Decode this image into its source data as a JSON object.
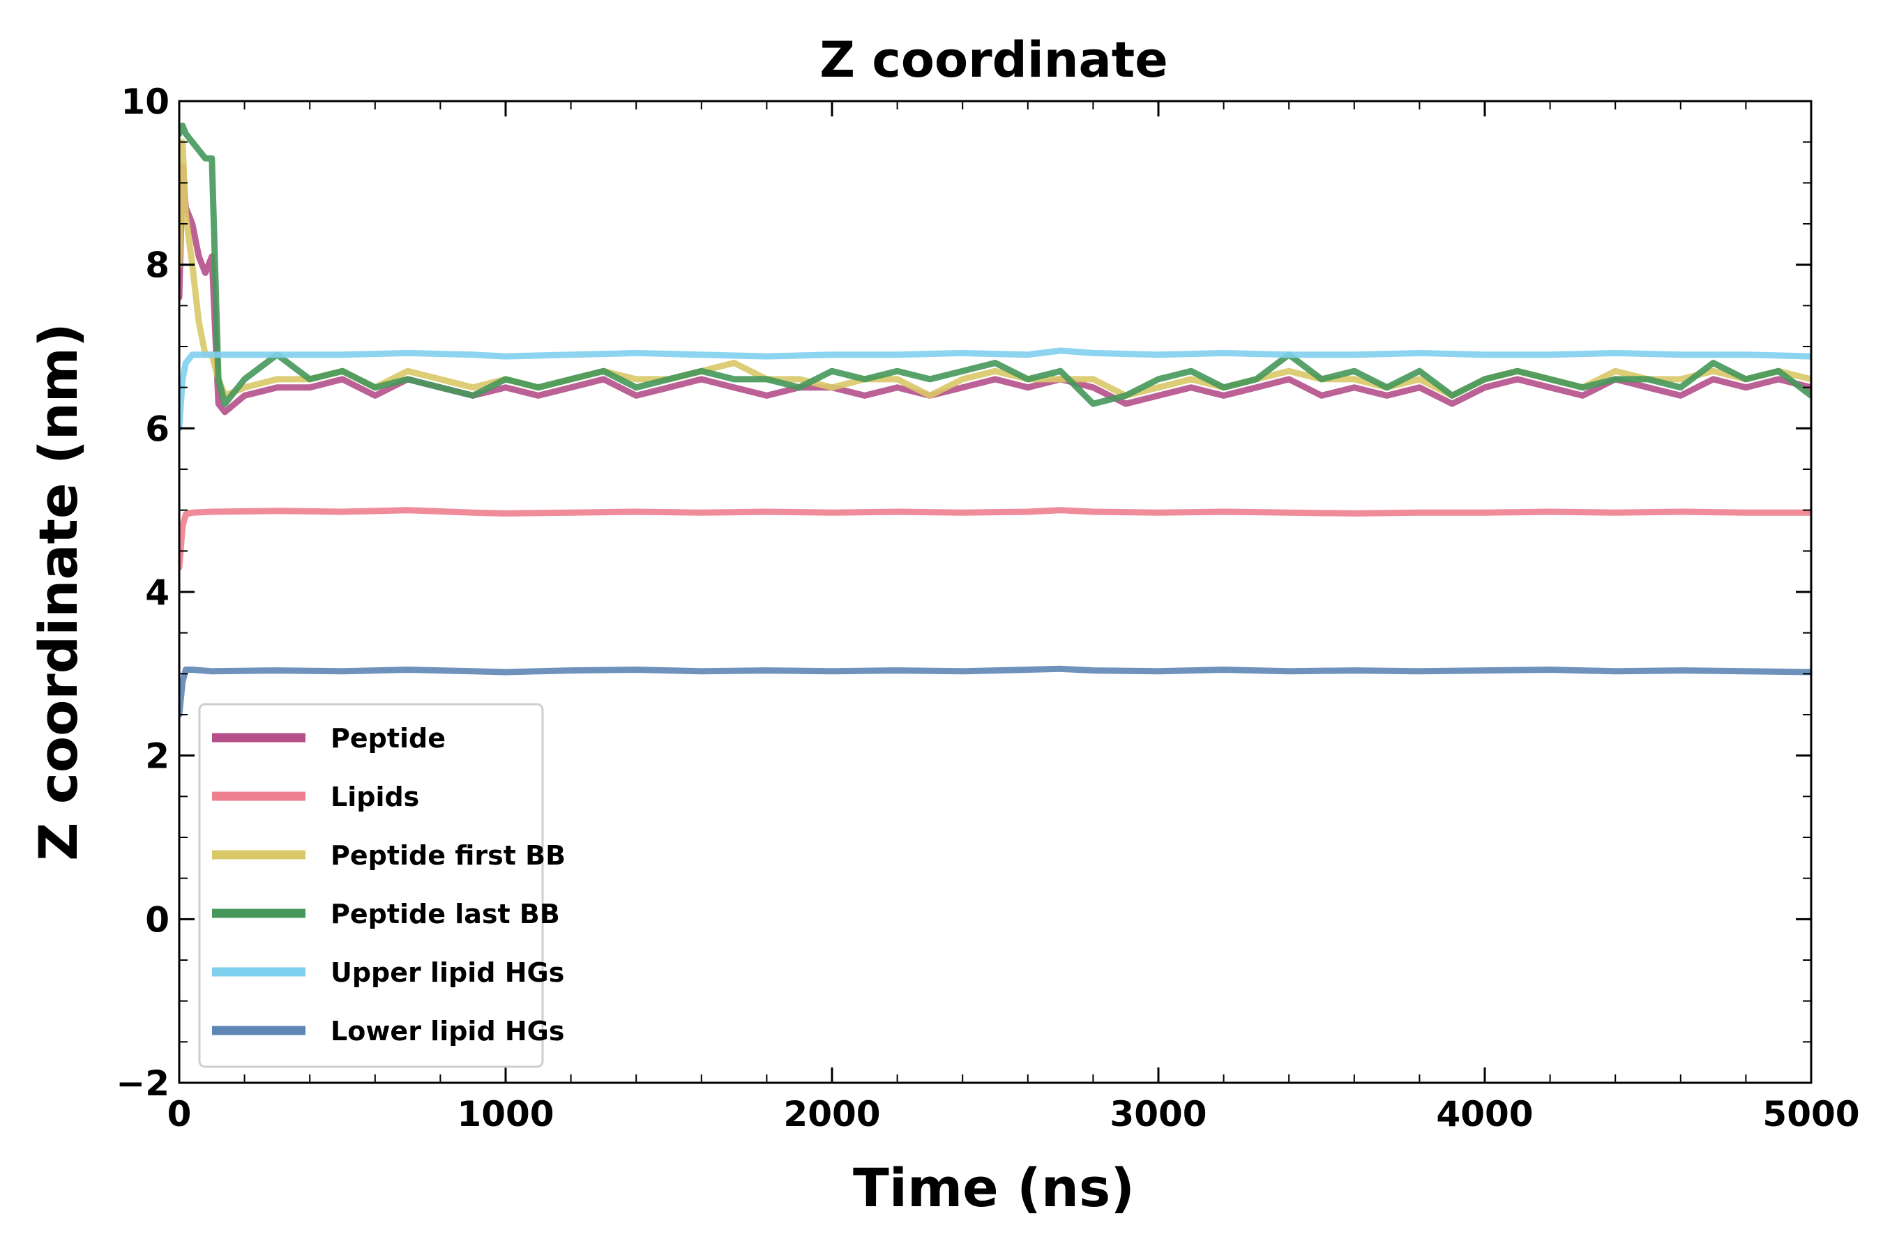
{
  "chart_data": {
    "type": "line",
    "title": "Z coordinate",
    "xlabel": "Time (ns)",
    "ylabel": "Z coordinate (nm)",
    "xlim": [
      0,
      5000
    ],
    "ylim": [
      -2,
      10
    ],
    "x_ticks": [
      0,
      1000,
      2000,
      3000,
      4000,
      5000
    ],
    "y_ticks": [
      -2,
      0,
      2,
      4,
      6,
      8,
      10
    ],
    "x_tick_labels": [
      "0",
      "1000",
      "2000",
      "3000",
      "4000",
      "5000"
    ],
    "y_tick_labels": [
      "−2",
      "0",
      "2",
      "4",
      "6",
      "8",
      "10"
    ],
    "grid": false,
    "legend_position": "lower-left",
    "series": [
      {
        "name": "Peptide",
        "color": "#b5508a",
        "x": [
          0,
          10,
          20,
          40,
          60,
          80,
          100,
          120,
          140,
          200,
          300,
          400,
          500,
          600,
          700,
          800,
          900,
          1000,
          1100,
          1200,
          1300,
          1400,
          1500,
          1600,
          1700,
          1800,
          1900,
          2000,
          2100,
          2200,
          2300,
          2400,
          2500,
          2600,
          2700,
          2800,
          2900,
          3000,
          3100,
          3200,
          3300,
          3400,
          3500,
          3600,
          3700,
          3800,
          3900,
          4000,
          4100,
          4200,
          4300,
          4400,
          4500,
          4600,
          4700,
          4800,
          4900,
          5000
        ],
        "y": [
          7.6,
          9.2,
          8.7,
          8.5,
          8.1,
          7.9,
          8.1,
          6.3,
          6.2,
          6.4,
          6.5,
          6.5,
          6.6,
          6.4,
          6.6,
          6.5,
          6.4,
          6.5,
          6.4,
          6.5,
          6.6,
          6.4,
          6.5,
          6.6,
          6.5,
          6.4,
          6.5,
          6.5,
          6.4,
          6.5,
          6.4,
          6.5,
          6.6,
          6.5,
          6.6,
          6.5,
          6.3,
          6.4,
          6.5,
          6.4,
          6.5,
          6.6,
          6.4,
          6.5,
          6.4,
          6.5,
          6.3,
          6.5,
          6.6,
          6.5,
          6.4,
          6.6,
          6.5,
          6.4,
          6.6,
          6.5,
          6.6,
          6.5
        ]
      },
      {
        "name": "Lipids",
        "color": "#ee7f8f",
        "x": [
          0,
          10,
          20,
          40,
          100,
          300,
          500,
          700,
          900,
          1000,
          1200,
          1400,
          1600,
          1800,
          2000,
          2200,
          2400,
          2600,
          2700,
          2800,
          3000,
          3200,
          3400,
          3600,
          3800,
          4000,
          4200,
          4400,
          4600,
          4800,
          5000
        ],
        "y": [
          4.3,
          4.8,
          4.95,
          4.97,
          4.98,
          4.99,
          4.98,
          5.0,
          4.97,
          4.96,
          4.97,
          4.98,
          4.97,
          4.98,
          4.97,
          4.98,
          4.97,
          4.98,
          5.0,
          4.98,
          4.97,
          4.98,
          4.97,
          4.96,
          4.97,
          4.97,
          4.98,
          4.97,
          4.98,
          4.97,
          4.97
        ]
      },
      {
        "name": "Peptide first BB",
        "color": "#d9c868",
        "x": [
          0,
          10,
          20,
          40,
          60,
          80,
          100,
          120,
          140,
          200,
          300,
          400,
          500,
          600,
          700,
          800,
          900,
          1000,
          1100,
          1200,
          1300,
          1400,
          1500,
          1600,
          1700,
          1800,
          1900,
          2000,
          2100,
          2200,
          2300,
          2400,
          2500,
          2600,
          2700,
          2800,
          2900,
          3000,
          3100,
          3200,
          3300,
          3400,
          3500,
          3600,
          3700,
          3800,
          3900,
          4000,
          4100,
          4200,
          4300,
          4400,
          4500,
          4600,
          4700,
          4800,
          4900,
          5000
        ],
        "y": [
          8.0,
          9.5,
          8.6,
          8.0,
          7.3,
          6.9,
          6.9,
          6.6,
          6.4,
          6.5,
          6.6,
          6.6,
          6.7,
          6.5,
          6.7,
          6.6,
          6.5,
          6.6,
          6.5,
          6.6,
          6.7,
          6.6,
          6.6,
          6.7,
          6.8,
          6.6,
          6.6,
          6.5,
          6.6,
          6.6,
          6.4,
          6.6,
          6.7,
          6.6,
          6.6,
          6.6,
          6.4,
          6.5,
          6.6,
          6.5,
          6.6,
          6.7,
          6.6,
          6.6,
          6.5,
          6.6,
          6.4,
          6.6,
          6.7,
          6.6,
          6.5,
          6.7,
          6.6,
          6.6,
          6.7,
          6.6,
          6.7,
          6.6
        ]
      },
      {
        "name": "Peptide last BB",
        "color": "#45985a",
        "x": [
          0,
          10,
          20,
          40,
          60,
          80,
          100,
          120,
          140,
          200,
          300,
          400,
          500,
          600,
          700,
          800,
          900,
          1000,
          1100,
          1200,
          1300,
          1400,
          1500,
          1600,
          1700,
          1800,
          1900,
          2000,
          2100,
          2200,
          2300,
          2400,
          2500,
          2600,
          2700,
          2800,
          2900,
          3000,
          3100,
          3200,
          3300,
          3400,
          3500,
          3600,
          3700,
          3800,
          3900,
          4000,
          4100,
          4200,
          4300,
          4400,
          4500,
          4600,
          4700,
          4800,
          4900,
          5000
        ],
        "y": [
          9.6,
          9.7,
          9.6,
          9.5,
          9.4,
          9.3,
          9.3,
          6.6,
          6.3,
          6.6,
          6.9,
          6.6,
          6.7,
          6.5,
          6.6,
          6.5,
          6.4,
          6.6,
          6.5,
          6.6,
          6.7,
          6.5,
          6.6,
          6.7,
          6.6,
          6.6,
          6.5,
          6.7,
          6.6,
          6.7,
          6.6,
          6.7,
          6.8,
          6.6,
          6.7,
          6.3,
          6.4,
          6.6,
          6.7,
          6.5,
          6.6,
          6.9,
          6.6,
          6.7,
          6.5,
          6.7,
          6.4,
          6.6,
          6.7,
          6.6,
          6.5,
          6.6,
          6.6,
          6.5,
          6.8,
          6.6,
          6.7,
          6.4
        ]
      },
      {
        "name": "Upper lipid HGs",
        "color": "#7fcfee",
        "x": [
          0,
          10,
          20,
          40,
          100,
          300,
          500,
          700,
          900,
          1000,
          1200,
          1400,
          1600,
          1800,
          2000,
          2200,
          2400,
          2600,
          2700,
          2800,
          3000,
          3200,
          3400,
          3600,
          3800,
          4000,
          4200,
          4400,
          4600,
          4800,
          5000
        ],
        "y": [
          6.0,
          6.6,
          6.8,
          6.9,
          6.9,
          6.9,
          6.9,
          6.92,
          6.9,
          6.88,
          6.9,
          6.92,
          6.9,
          6.88,
          6.9,
          6.9,
          6.92,
          6.9,
          6.95,
          6.92,
          6.9,
          6.92,
          6.9,
          6.9,
          6.92,
          6.9,
          6.9,
          6.92,
          6.9,
          6.9,
          6.88
        ]
      },
      {
        "name": "Lower lipid HGs",
        "color": "#5e86b4",
        "x": [
          0,
          10,
          20,
          40,
          100,
          300,
          500,
          700,
          900,
          1000,
          1200,
          1400,
          1600,
          1800,
          2000,
          2200,
          2400,
          2600,
          2700,
          2800,
          3000,
          3200,
          3400,
          3600,
          3800,
          4000,
          4200,
          4400,
          4600,
          4800,
          5000
        ],
        "y": [
          2.5,
          2.9,
          3.05,
          3.05,
          3.03,
          3.04,
          3.03,
          3.05,
          3.03,
          3.02,
          3.04,
          3.05,
          3.03,
          3.04,
          3.03,
          3.04,
          3.03,
          3.05,
          3.06,
          3.04,
          3.03,
          3.05,
          3.03,
          3.04,
          3.03,
          3.04,
          3.05,
          3.03,
          3.04,
          3.03,
          3.02
        ]
      }
    ]
  }
}
